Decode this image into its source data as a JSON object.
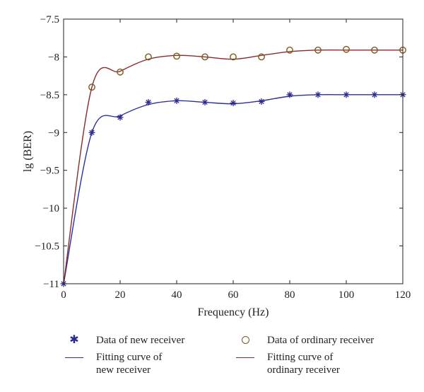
{
  "chart_data": {
    "type": "line",
    "title": "",
    "xlabel": "Frequency (Hz)",
    "ylabel": "lg (BER)",
    "xlim": [
      0,
      120
    ],
    "ylim": [
      -11,
      -7.5
    ],
    "xticks": [
      0,
      20,
      40,
      60,
      80,
      100,
      120
    ],
    "xtick_labels": [
      "0",
      "20",
      "40",
      "60",
      "80",
      "100",
      "120"
    ],
    "yticks": [
      -7.5,
      -8,
      -8.5,
      -9,
      -9.5,
      -10,
      -10.5,
      -11
    ],
    "ytick_labels": [
      "−7.5",
      "−8",
      "−8.5",
      "−9",
      "−9.5",
      "−10",
      "−10.5",
      "−11"
    ],
    "grid": false,
    "legend_position": "below",
    "series": [
      {
        "name": "Data of new receiver",
        "kind": "scatter",
        "marker": "star",
        "color": "#2b2b8f",
        "x": [
          0,
          10,
          20,
          30,
          40,
          50,
          60,
          70,
          80,
          90,
          100,
          110,
          120
        ],
        "y": [
          -11,
          -9.0,
          -8.8,
          -8.6,
          -8.58,
          -8.6,
          -8.61,
          -8.59,
          -8.5,
          -8.5,
          -8.5,
          -8.5,
          -8.5
        ]
      },
      {
        "name": "Data of ordinary receiver",
        "kind": "scatter",
        "marker": "circle",
        "color": "#7a5a1a",
        "x": [
          10,
          20,
          30,
          40,
          50,
          60,
          70,
          80,
          90,
          100,
          110,
          120
        ],
        "y": [
          -8.4,
          -8.2,
          -8.0,
          -7.99,
          -8.0,
          -8.0,
          -8.0,
          -7.91,
          -7.91,
          -7.9,
          -7.91,
          -7.91
        ]
      },
      {
        "name": "Fitting curve of\nnew receiver",
        "kind": "line",
        "color": "#2e2e9e",
        "x": [
          0,
          10,
          20,
          30,
          40,
          50,
          60,
          70,
          80,
          90,
          100,
          110,
          120
        ],
        "y": [
          -11,
          -9.0,
          -8.78,
          -8.63,
          -8.58,
          -8.6,
          -8.62,
          -8.58,
          -8.52,
          -8.5,
          -8.5,
          -8.5,
          -8.5
        ]
      },
      {
        "name": "Fitting curve of\nordinary receiver",
        "kind": "line",
        "color": "#8b2b2b",
        "x": [
          0,
          10,
          20,
          30,
          40,
          50,
          60,
          70,
          80,
          90,
          100,
          110,
          120
        ],
        "y": [
          -11,
          -8.4,
          -8.19,
          -8.03,
          -7.98,
          -8.0,
          -8.03,
          -7.98,
          -7.93,
          -7.91,
          -7.91,
          -7.91,
          -7.91
        ]
      }
    ]
  }
}
